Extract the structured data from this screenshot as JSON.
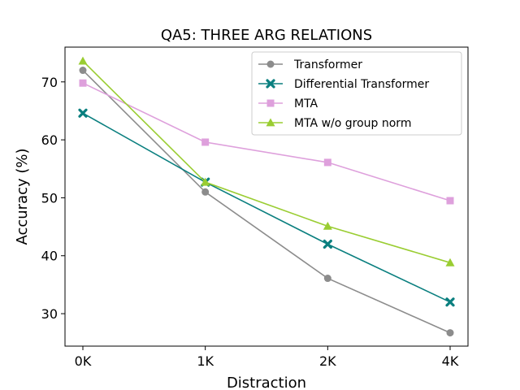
{
  "chart_data": {
    "type": "line",
    "title": "QA5: THREE ARG RELATIONS",
    "xlabel": "Distraction",
    "ylabel": "Accuracy (%)",
    "categories": [
      "0K",
      "1K",
      "2K",
      "4K"
    ],
    "ylim": [
      24.4,
      76.0
    ],
    "yticks": [
      30,
      40,
      50,
      60,
      70
    ],
    "grid": false,
    "legend_position": "top-right",
    "series": [
      {
        "name": "Transformer",
        "values": [
          72.0,
          51.0,
          36.1,
          26.7
        ],
        "color": "#8c8c8c",
        "marker": "circle"
      },
      {
        "name": "Differential Transformer",
        "values": [
          64.6,
          52.7,
          42.0,
          32.0
        ],
        "color": "#0a7f7f",
        "marker": "x"
      },
      {
        "name": "MTA",
        "values": [
          69.8,
          59.6,
          56.1,
          49.5
        ],
        "color": "#dea0dc",
        "marker": "square"
      },
      {
        "name": "MTA w/o group norm",
        "values": [
          73.6,
          52.7,
          45.1,
          38.8
        ],
        "color": "#9acd32",
        "marker": "triangle"
      }
    ]
  }
}
